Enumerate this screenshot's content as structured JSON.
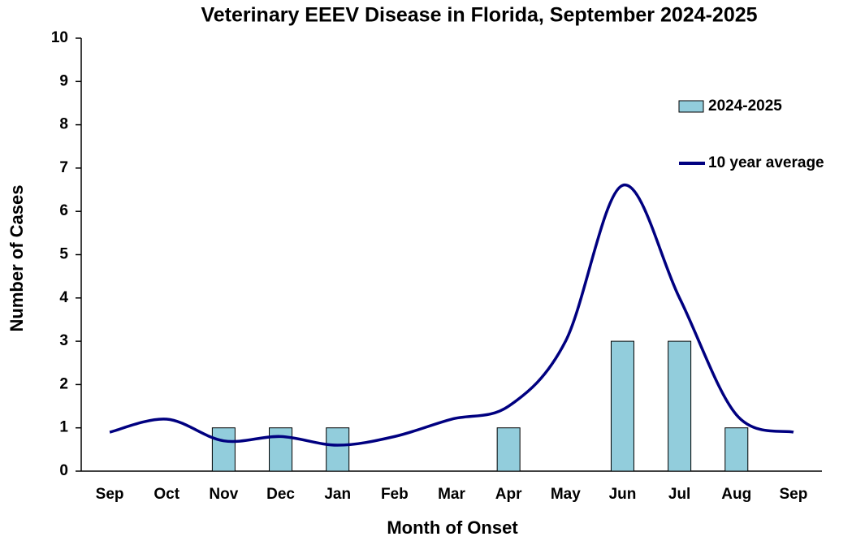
{
  "chart_data": {
    "type": "bar+line",
    "title": "Veterinary EEEV Disease in Florida, September 2024-2025",
    "x_label": "Month of Onset",
    "y_label": "Number of Cases",
    "categories": [
      "Sep",
      "Oct",
      "Nov",
      "Dec",
      "Jan",
      "Feb",
      "Mar",
      "Apr",
      "May",
      "Jun",
      "Jul",
      "Aug",
      "Sep"
    ],
    "series": [
      {
        "name": "2024-2025",
        "type": "bar",
        "color": "#92cddc",
        "values": [
          0,
          0,
          1,
          1,
          1,
          0,
          0,
          1,
          0,
          3,
          3,
          1,
          null
        ]
      },
      {
        "name": "10 year average",
        "type": "line",
        "color": "#000080",
        "values": [
          0.9,
          1.2,
          0.7,
          0.8,
          0.6,
          0.8,
          1.2,
          1.5,
          3.0,
          6.6,
          4.0,
          1.3,
          0.9
        ]
      }
    ],
    "ylim": [
      0,
      10
    ],
    "yticks": [
      0,
      1,
      2,
      3,
      4,
      5,
      6,
      7,
      8,
      9,
      10
    ],
    "legend": "upper right"
  }
}
